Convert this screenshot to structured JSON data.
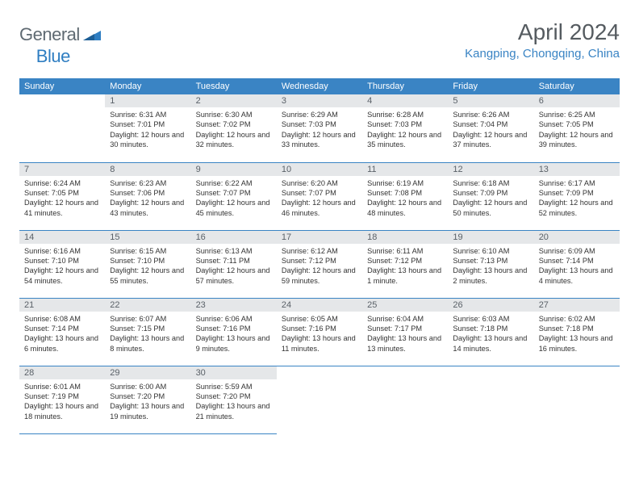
{
  "brand": {
    "part1": "General",
    "part2": "Blue"
  },
  "title": "April 2024",
  "location": "Kangping, Chongqing, China",
  "colors": {
    "header_bg": "#3a84c4",
    "header_text": "#ffffff",
    "daynum_bg": "#e5e7e9",
    "border": "#3a84c4",
    "title_color": "#555b60",
    "location_color": "#3a84c4",
    "logo_gray": "#5f6a72",
    "logo_blue": "#2f7ec2"
  },
  "weekdays": [
    "Sunday",
    "Monday",
    "Tuesday",
    "Wednesday",
    "Thursday",
    "Friday",
    "Saturday"
  ],
  "weeks": [
    [
      {
        "empty": true
      },
      {
        "day": "1",
        "sunrise": "6:31 AM",
        "sunset": "7:01 PM",
        "daylight": "12 hours and 30 minutes."
      },
      {
        "day": "2",
        "sunrise": "6:30 AM",
        "sunset": "7:02 PM",
        "daylight": "12 hours and 32 minutes."
      },
      {
        "day": "3",
        "sunrise": "6:29 AM",
        "sunset": "7:03 PM",
        "daylight": "12 hours and 33 minutes."
      },
      {
        "day": "4",
        "sunrise": "6:28 AM",
        "sunset": "7:03 PM",
        "daylight": "12 hours and 35 minutes."
      },
      {
        "day": "5",
        "sunrise": "6:26 AM",
        "sunset": "7:04 PM",
        "daylight": "12 hours and 37 minutes."
      },
      {
        "day": "6",
        "sunrise": "6:25 AM",
        "sunset": "7:05 PM",
        "daylight": "12 hours and 39 minutes."
      }
    ],
    [
      {
        "day": "7",
        "sunrise": "6:24 AM",
        "sunset": "7:05 PM",
        "daylight": "12 hours and 41 minutes."
      },
      {
        "day": "8",
        "sunrise": "6:23 AM",
        "sunset": "7:06 PM",
        "daylight": "12 hours and 43 minutes."
      },
      {
        "day": "9",
        "sunrise": "6:22 AM",
        "sunset": "7:07 PM",
        "daylight": "12 hours and 45 minutes."
      },
      {
        "day": "10",
        "sunrise": "6:20 AM",
        "sunset": "7:07 PM",
        "daylight": "12 hours and 46 minutes."
      },
      {
        "day": "11",
        "sunrise": "6:19 AM",
        "sunset": "7:08 PM",
        "daylight": "12 hours and 48 minutes."
      },
      {
        "day": "12",
        "sunrise": "6:18 AM",
        "sunset": "7:09 PM",
        "daylight": "12 hours and 50 minutes."
      },
      {
        "day": "13",
        "sunrise": "6:17 AM",
        "sunset": "7:09 PM",
        "daylight": "12 hours and 52 minutes."
      }
    ],
    [
      {
        "day": "14",
        "sunrise": "6:16 AM",
        "sunset": "7:10 PM",
        "daylight": "12 hours and 54 minutes."
      },
      {
        "day": "15",
        "sunrise": "6:15 AM",
        "sunset": "7:10 PM",
        "daylight": "12 hours and 55 minutes."
      },
      {
        "day": "16",
        "sunrise": "6:13 AM",
        "sunset": "7:11 PM",
        "daylight": "12 hours and 57 minutes."
      },
      {
        "day": "17",
        "sunrise": "6:12 AM",
        "sunset": "7:12 PM",
        "daylight": "12 hours and 59 minutes."
      },
      {
        "day": "18",
        "sunrise": "6:11 AM",
        "sunset": "7:12 PM",
        "daylight": "13 hours and 1 minute."
      },
      {
        "day": "19",
        "sunrise": "6:10 AM",
        "sunset": "7:13 PM",
        "daylight": "13 hours and 2 minutes."
      },
      {
        "day": "20",
        "sunrise": "6:09 AM",
        "sunset": "7:14 PM",
        "daylight": "13 hours and 4 minutes."
      }
    ],
    [
      {
        "day": "21",
        "sunrise": "6:08 AM",
        "sunset": "7:14 PM",
        "daylight": "13 hours and 6 minutes."
      },
      {
        "day": "22",
        "sunrise": "6:07 AM",
        "sunset": "7:15 PM",
        "daylight": "13 hours and 8 minutes."
      },
      {
        "day": "23",
        "sunrise": "6:06 AM",
        "sunset": "7:16 PM",
        "daylight": "13 hours and 9 minutes."
      },
      {
        "day": "24",
        "sunrise": "6:05 AM",
        "sunset": "7:16 PM",
        "daylight": "13 hours and 11 minutes."
      },
      {
        "day": "25",
        "sunrise": "6:04 AM",
        "sunset": "7:17 PM",
        "daylight": "13 hours and 13 minutes."
      },
      {
        "day": "26",
        "sunrise": "6:03 AM",
        "sunset": "7:18 PM",
        "daylight": "13 hours and 14 minutes."
      },
      {
        "day": "27",
        "sunrise": "6:02 AM",
        "sunset": "7:18 PM",
        "daylight": "13 hours and 16 minutes."
      }
    ],
    [
      {
        "day": "28",
        "sunrise": "6:01 AM",
        "sunset": "7:19 PM",
        "daylight": "13 hours and 18 minutes."
      },
      {
        "day": "29",
        "sunrise": "6:00 AM",
        "sunset": "7:20 PM",
        "daylight": "13 hours and 19 minutes."
      },
      {
        "day": "30",
        "sunrise": "5:59 AM",
        "sunset": "7:20 PM",
        "daylight": "13 hours and 21 minutes."
      },
      {
        "empty": true,
        "blankend": true
      },
      {
        "empty": true,
        "blankend": true
      },
      {
        "empty": true,
        "blankend": true
      },
      {
        "empty": true,
        "blankend": true
      }
    ]
  ],
  "labels": {
    "sunrise": "Sunrise:",
    "sunset": "Sunset:",
    "daylight": "Daylight:"
  }
}
